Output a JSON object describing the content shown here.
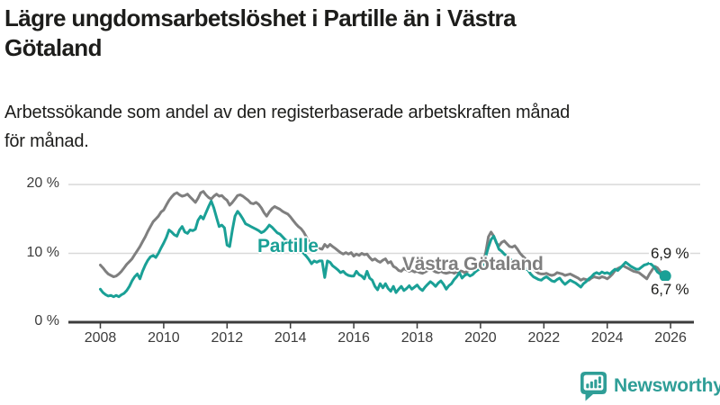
{
  "header": {
    "title_lines": [
      "Lägre ungdomsarbetslöshet i Partille än i Västra",
      "Götaland"
    ],
    "subtitle_lines": [
      "Arbetssökande som andel av den registerbaserade arbetskraften månad",
      "för månad."
    ]
  },
  "chart_data": {
    "type": "line",
    "title": "Lägre ungdomsarbetslöshet i Partille än i Västra Götaland",
    "subtitle": "Arbetssökande som andel av den registerbaserade arbetskraften månad för månad.",
    "x_unit": "monthly",
    "x_start_year": 2008,
    "x_end": "2025-11",
    "xlim": [
      2007.6,
      2026.8
    ],
    "ylim": [
      0,
      21
    ],
    "grid": "horizontal",
    "legend_position": "inline-labels",
    "x_ticks": [
      "2008",
      "2010",
      "2012",
      "2014",
      "2016",
      "2018",
      "2020",
      "2022",
      "2024",
      "2026"
    ],
    "y_ticks": [
      {
        "value": 0,
        "label": "0 %"
      },
      {
        "value": 10,
        "label": "10 %"
      },
      {
        "value": 20,
        "label": "20 %"
      }
    ],
    "grid_color": "#d9d9d9",
    "axis_color": "#3c3c3c",
    "series": [
      {
        "name": "Västra Götaland",
        "color": "#7f7f7f",
        "end_dot": false,
        "end_value_label": "6,9 %",
        "values": [
          8.3,
          7.9,
          7.4,
          7.0,
          6.8,
          6.6,
          6.7,
          7.0,
          7.4,
          7.9,
          8.4,
          8.8,
          9.2,
          9.8,
          10.4,
          11.0,
          11.7,
          12.4,
          13.2,
          13.9,
          14.6,
          15.0,
          15.4,
          16.0,
          16.3,
          17.0,
          17.7,
          18.2,
          18.6,
          18.8,
          18.5,
          18.3,
          18.4,
          18.6,
          18.2,
          17.8,
          17.4,
          18.0,
          18.8,
          19.0,
          18.5,
          18.1,
          17.9,
          18.3,
          18.6,
          18.3,
          18.4,
          18.0,
          17.7,
          17.0,
          17.4,
          17.9,
          18.4,
          18.5,
          18.3,
          18.0,
          17.7,
          17.3,
          17.2,
          17.4,
          17.1,
          16.6,
          15.9,
          15.4,
          16.0,
          16.5,
          16.8,
          16.6,
          16.4,
          16.1,
          15.9,
          15.7,
          15.3,
          14.8,
          14.3,
          13.9,
          13.6,
          13.1,
          12.4,
          11.7,
          11.3,
          11.5,
          11.1,
          10.7,
          10.6,
          11.3,
          10.9,
          11.3,
          11.0,
          10.7,
          10.4,
          10.1,
          9.9,
          10.1,
          9.9,
          10.1,
          9.6,
          9.9,
          9.7,
          10.0,
          9.8,
          9.9,
          9.4,
          9.0,
          9.2,
          8.9,
          8.7,
          9.0,
          9.2,
          8.6,
          8.8,
          8.1,
          7.9,
          7.5,
          7.4,
          7.8,
          7.6,
          7.4,
          7.5,
          7.3,
          7.4,
          7.2,
          7.1,
          7.3,
          7.5,
          7.7,
          7.5,
          7.3,
          7.2,
          7.4,
          7.2,
          7.1,
          7.2,
          7.3,
          7.1,
          7.3,
          7.5,
          7.4,
          7.2,
          7.4,
          7.6,
          7.5,
          7.7,
          7.9,
          8.2,
          8.6,
          10.2,
          12.4,
          13.1,
          12.5,
          11.5,
          11.1,
          11.6,
          11.8,
          11.4,
          11.0,
          10.9,
          11.1,
          10.6,
          10.0,
          9.6,
          9.2,
          8.8,
          8.3,
          7.8,
          7.4,
          7.1,
          7.0,
          7.0,
          7.1,
          6.9,
          6.8,
          6.9,
          7.2,
          7.1,
          7.0,
          6.8,
          6.9,
          7.0,
          6.8,
          6.6,
          6.4,
          6.1,
          6.3,
          6.2,
          6.1,
          6.4,
          6.6,
          6.5,
          6.4,
          6.6,
          6.5,
          6.3,
          6.6,
          7.0,
          7.5,
          7.8,
          8.0,
          8.2,
          8.0,
          7.8,
          7.6,
          7.4,
          7.3,
          7.2,
          6.9,
          6.6,
          6.3,
          7.0,
          7.6,
          8.1,
          7.9,
          7.4,
          7.1,
          6.9
        ]
      },
      {
        "name": "Partille",
        "color": "#1aa096",
        "end_dot": true,
        "end_value_label": "6,7 %",
        "values": [
          4.8,
          4.3,
          4.0,
          3.8,
          3.9,
          3.7,
          3.9,
          3.7,
          4.0,
          4.2,
          4.6,
          5.2,
          6.0,
          6.6,
          7.0,
          6.3,
          7.4,
          8.3,
          9.0,
          9.5,
          9.7,
          9.4,
          10.0,
          10.8,
          11.5,
          12.3,
          13.4,
          13.1,
          12.7,
          12.5,
          13.4,
          13.9,
          13.1,
          12.9,
          13.4,
          13.3,
          13.5,
          14.8,
          15.4,
          15.0,
          15.9,
          16.8,
          17.6,
          16.6,
          15.2,
          13.9,
          14.1,
          13.7,
          11.2,
          11.0,
          13.4,
          15.4,
          16.1,
          15.6,
          15.0,
          14.3,
          14.1,
          13.9,
          13.7,
          13.5,
          13.3,
          13.0,
          13.2,
          13.6,
          14.1,
          13.8,
          13.4,
          13.0,
          12.8,
          12.4,
          12.0,
          11.7,
          11.7,
          11.4,
          11.1,
          10.8,
          10.4,
          10.0,
          9.6,
          9.1,
          8.5,
          8.9,
          8.7,
          8.9,
          8.9,
          6.5,
          8.9,
          8.7,
          8.2,
          7.9,
          7.6,
          7.2,
          7.4,
          7.0,
          6.8,
          6.7,
          6.7,
          7.4,
          6.9,
          6.7,
          6.3,
          7.4,
          6.4,
          6.1,
          5.2,
          4.7,
          5.6,
          5.0,
          5.6,
          4.9,
          4.5,
          5.2,
          4.3,
          4.8,
          5.2,
          4.6,
          4.9,
          5.3,
          4.8,
          5.1,
          5.4,
          4.9,
          4.6,
          5.1,
          5.5,
          5.9,
          5.6,
          5.2,
          5.7,
          6.0,
          5.5,
          4.8,
          5.3,
          5.6,
          6.2,
          6.6,
          7.2,
          6.4,
          6.8,
          7.0,
          6.7,
          6.9,
          7.3,
          7.6,
          7.8,
          8.4,
          9.6,
          10.9,
          12.0,
          12.5,
          11.6,
          10.6,
          10.3,
          9.9,
          9.6,
          9.2,
          8.9,
          8.5,
          8.3,
          8.1,
          7.9,
          7.8,
          7.6,
          7.0,
          6.6,
          6.4,
          6.2,
          6.1,
          6.4,
          6.6,
          6.3,
          6.0,
          5.9,
          6.2,
          6.4,
          5.9,
          5.5,
          5.8,
          6.1,
          5.9,
          5.7,
          5.4,
          5.1,
          5.6,
          5.9,
          6.3,
          6.6,
          7.0,
          7.2,
          7.0,
          7.3,
          7.1,
          7.2,
          7.0,
          7.4,
          7.7,
          7.5,
          7.9,
          8.3,
          8.7,
          8.4,
          8.1,
          7.9,
          7.7,
          7.7,
          8.0,
          8.3,
          8.4,
          8.6,
          8.3,
          7.9,
          7.3,
          7.0,
          6.8,
          6.7
        ]
      }
    ],
    "annotations": {
      "partille_label": "Partille",
      "vastra_label": "Västra Götaland",
      "end_value_top": "6,9 %",
      "end_value_bottom": "6,7 %"
    }
  },
  "footer": {
    "brand": "Newsworthy",
    "brand_color": "#2f9e97",
    "badge_icon": "bar-chart-exclamation-speech-bubble"
  }
}
